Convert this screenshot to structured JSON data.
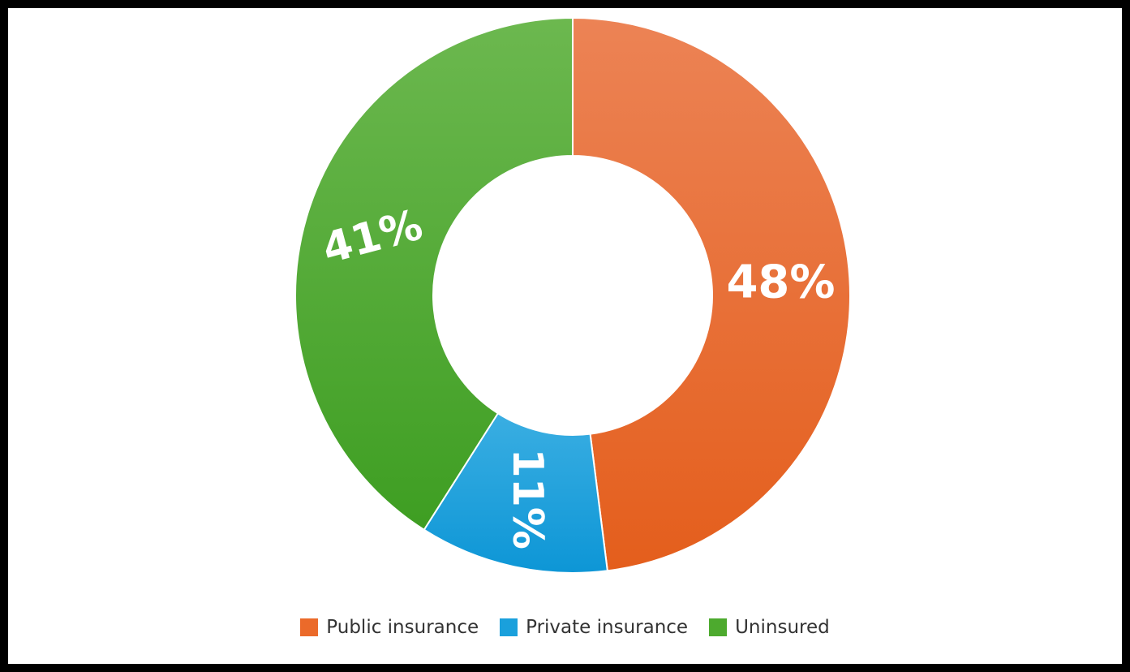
{
  "chart_data": {
    "type": "pie",
    "donut": true,
    "title": "",
    "categories": [
      "Public insurance",
      "Private insurance",
      "Uninsured"
    ],
    "values": [
      48,
      11,
      41
    ],
    "labels": [
      "48%",
      "11%",
      "41%"
    ],
    "colors": [
      "#EB6A2A",
      "#1AA0DC",
      "#4DAA2E"
    ],
    "legend": "bottom-center",
    "start_angle": "12 o'clock",
    "direction": "clockwise"
  }
}
